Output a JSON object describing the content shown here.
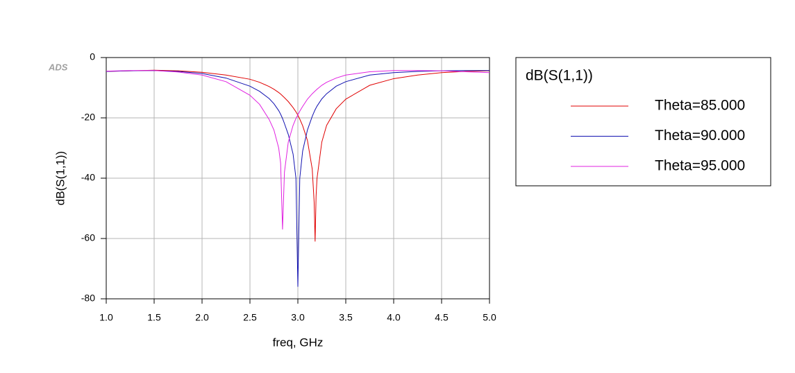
{
  "chart_data": {
    "type": "line",
    "watermark": "ADS",
    "xlabel": "freq, GHz",
    "ylabel": "dB(S(1,1))",
    "legend_title": "dB(S(1,1))",
    "legend": "outside-right",
    "grid": true,
    "xlim": [
      1,
      5
    ],
    "ylim": [
      -80,
      0
    ],
    "xticks": [
      {
        "value": 1,
        "label": "1.0"
      },
      1.5,
      {
        "value": 2,
        "label": "2.0"
      },
      2.5,
      {
        "value": 3,
        "label": "3.0"
      },
      3.5,
      {
        "value": 4,
        "label": "4.0"
      },
      4.5,
      {
        "value": 5,
        "label": "5.0"
      }
    ],
    "yticks": [
      -80,
      -60,
      -40,
      -20,
      0
    ],
    "x": [
      1.0,
      1.25,
      1.5,
      1.75,
      2.0,
      2.25,
      2.5,
      2.6,
      2.7,
      2.75,
      2.8,
      2.82,
      2.84,
      2.86,
      2.9,
      2.95,
      2.98,
      3.0,
      3.02,
      3.05,
      3.1,
      3.15,
      3.17,
      3.18,
      3.19,
      3.2,
      3.25,
      3.3,
      3.4,
      3.5,
      3.75,
      4.0,
      4.25,
      4.5,
      4.75,
      5.0
    ],
    "series": [
      {
        "name": "Theta=85.000",
        "color": "#e00000",
        "values": [
          -4.6,
          -4.4,
          -4.2,
          -4.4,
          -4.9,
          -5.8,
          -7.2,
          -8.2,
          -9.6,
          -10.5,
          -11.6,
          -12.1,
          -12.7,
          -13.3,
          -14.6,
          -16.6,
          -18,
          -19.1,
          -20.4,
          -22.6,
          -27.5,
          -37,
          -48,
          -61,
          -46,
          -40,
          -28,
          -22.5,
          -17,
          -13.8,
          -9.2,
          -7,
          -5.8,
          -5,
          -4.6,
          -4.4
        ]
      },
      {
        "name": "Theta=90.000",
        "color": "#1010b0",
        "values": [
          -4.6,
          -4.4,
          -4.3,
          -4.6,
          -5.3,
          -6.8,
          -9.5,
          -11.2,
          -13.6,
          -15.3,
          -17.6,
          -18.8,
          -20.2,
          -21.9,
          -25.5,
          -32,
          -40,
          -76,
          -40,
          -31,
          -24,
          -19.5,
          -18,
          -17.3,
          -16.7,
          -16.1,
          -13.7,
          -12,
          -9.5,
          -8,
          -5.8,
          -5,
          -4.6,
          -4.4,
          -4.3,
          -4.3
        ]
      },
      {
        "name": "Theta=95.000",
        "color": "#e020e0",
        "values": [
          -4.5,
          -4.3,
          -4.3,
          -4.8,
          -5.8,
          -8,
          -12.5,
          -15.5,
          -20.5,
          -24,
          -30,
          -35,
          -57,
          -38,
          -28,
          -22.5,
          -20.2,
          -19,
          -17.8,
          -16.2,
          -13.8,
          -12,
          -11.4,
          -11.1,
          -10.8,
          -10.5,
          -9.2,
          -8.2,
          -6.8,
          -5.8,
          -4.7,
          -4.3,
          -4.3,
          -4.4,
          -4.7,
          -5
        ]
      }
    ]
  }
}
